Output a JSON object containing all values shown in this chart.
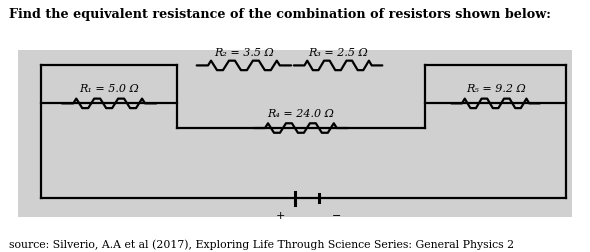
{
  "title": "Find the equivalent resistance of the combination of resistors shown below:",
  "source": "source: Silverio, A.A et al (2017), Exploring Life Through Science Series: General Physics 2",
  "bg_color": "#d0d0d0",
  "outer_bg": "#ffffff",
  "R1_label": "R₁ = 5.0 Ω",
  "R2_label": "R₂ = 3.5 Ω",
  "R3_label": "R₃ = 2.5 Ω",
  "R4_label": "R₄ = 24.0 Ω",
  "R5_label": "R₅ = 9.2 Ω",
  "wire_color": "#000000",
  "line_width": 1.6,
  "fig_width": 5.9,
  "fig_height": 2.53,
  "dpi": 100
}
